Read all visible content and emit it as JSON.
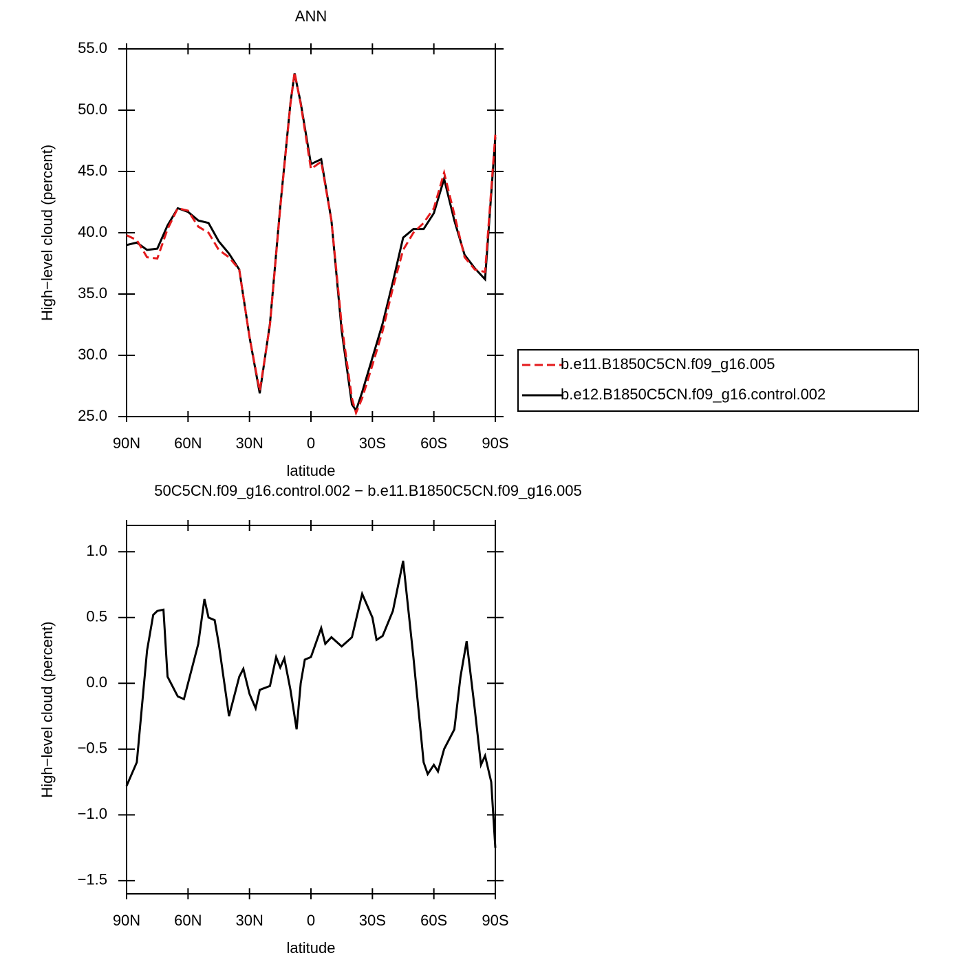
{
  "chart_data": [
    {
      "type": "line",
      "title": "ANN",
      "xlabel": "latitude",
      "ylabel": "High−level cloud (percent)",
      "x": [
        90,
        85,
        80,
        75,
        70,
        65,
        60,
        55,
        50,
        45,
        40,
        35,
        30,
        25,
        20,
        15,
        10,
        8,
        5,
        0,
        -5,
        -10,
        -15,
        -20,
        -22,
        -25,
        -30,
        -35,
        -40,
        -45,
        -50,
        -55,
        -60,
        -65,
        -70,
        -75,
        -80,
        -85,
        -90
      ],
      "xlim": [
        90,
        -90
      ],
      "xticks": [
        {
          "value": 90,
          "label": "90N"
        },
        {
          "value": 60,
          "label": "60N"
        },
        {
          "value": 30,
          "label": "30N"
        },
        0,
        {
          "value": -30,
          "label": "30S"
        },
        {
          "value": -60,
          "label": "60S"
        },
        {
          "value": -90,
          "label": "90S"
        }
      ],
      "ylim": [
        25,
        55
      ],
      "yticks": [
        {
          "value": 25,
          "label": "25.0"
        },
        {
          "value": 30,
          "label": "30.0"
        },
        {
          "value": 35,
          "label": "35.0"
        },
        {
          "value": 40,
          "label": "40.0"
        },
        {
          "value": 45,
          "label": "45.0"
        },
        {
          "value": 50,
          "label": "50.0"
        },
        {
          "value": 55,
          "label": "55.0"
        }
      ],
      "legend": "right",
      "series": [
        {
          "name": "b.e11.B1850C5CN.f09_g16.005",
          "color": "#e41a1c",
          "dash": true,
          "values": [
            39.8,
            39.4,
            38.0,
            37.9,
            40.3,
            42.0,
            41.8,
            40.5,
            40.0,
            38.6,
            38.0,
            37.0,
            31.5,
            27.1,
            32.5,
            42.0,
            50.5,
            53.1,
            50.5,
            45.2,
            45.8,
            41.0,
            32.5,
            26.5,
            25.3,
            26.5,
            29.2,
            32.0,
            35.5,
            38.6,
            40.0,
            40.8,
            42.0,
            44.9,
            41.5,
            38.0,
            37.0,
            36.8,
            48.0
          ]
        },
        {
          "name": "b.e12.B1850C5CN.f09_g16.control.002",
          "color": "#000000",
          "dash": false,
          "values": [
            39.0,
            39.2,
            38.6,
            38.7,
            40.6,
            42.0,
            41.7,
            41.0,
            40.8,
            39.3,
            38.3,
            37.0,
            31.5,
            26.9,
            32.6,
            42.1,
            50.6,
            53.0,
            50.6,
            45.6,
            46.0,
            41.0,
            32.0,
            26.0,
            25.5,
            27.0,
            29.8,
            32.6,
            36.0,
            39.6,
            40.3,
            40.3,
            41.6,
            44.4,
            41.0,
            38.2,
            37.1,
            36.2,
            47.8
          ]
        }
      ]
    },
    {
      "type": "line",
      "title": "50C5CN.f09_g16.control.002 − b.e11.B1850C5CN.f09_g16.005",
      "xlabel": "latitude",
      "ylabel": "High−level cloud (percent)",
      "x": [
        90,
        85,
        80,
        77,
        75,
        72,
        70,
        65,
        62,
        60,
        55,
        52,
        50,
        47,
        45,
        40,
        35,
        33,
        30,
        27,
        25,
        20,
        17,
        15,
        13,
        10,
        7,
        5,
        3,
        0,
        -5,
        -7,
        -10,
        -15,
        -20,
        -25,
        -30,
        -32,
        -35,
        -40,
        -45,
        -50,
        -55,
        -57,
        -60,
        -62,
        -65,
        -70,
        -73,
        -76,
        -80,
        -83,
        -85,
        -88,
        -90
      ],
      "xlim": [
        90,
        -90
      ],
      "xticks": [
        {
          "value": 90,
          "label": "90N"
        },
        {
          "value": 60,
          "label": "60N"
        },
        {
          "value": 30,
          "label": "30N"
        },
        0,
        {
          "value": -30,
          "label": "30S"
        },
        {
          "value": -60,
          "label": "60S"
        },
        {
          "value": -90,
          "label": "90S"
        }
      ],
      "ylim": [
        -1.6,
        1.2
      ],
      "yticks": [
        {
          "value": -1.5,
          "label": "−1.5"
        },
        {
          "value": -1,
          "label": "−1.0"
        },
        {
          "value": -0.5,
          "label": "−0.5"
        },
        {
          "value": 0,
          "label": "0.0"
        },
        0.5,
        {
          "value": 1,
          "label": "1.0"
        }
      ],
      "series": [
        {
          "color": "#000000",
          "dash": false,
          "values": [
            -0.78,
            -0.6,
            0.25,
            0.52,
            0.55,
            0.56,
            0.05,
            -0.1,
            -0.12,
            0.0,
            0.3,
            0.64,
            0.5,
            0.48,
            0.3,
            -0.25,
            0.05,
            0.11,
            -0.08,
            -0.19,
            -0.05,
            -0.02,
            0.2,
            0.12,
            0.19,
            -0.05,
            -0.35,
            0.0,
            0.18,
            0.2,
            0.42,
            0.3,
            0.35,
            0.28,
            0.35,
            0.68,
            0.5,
            0.33,
            0.36,
            0.55,
            0.93,
            0.2,
            -0.6,
            -0.69,
            -0.62,
            -0.67,
            -0.5,
            -0.35,
            0.05,
            0.32,
            -0.2,
            -0.62,
            -0.55,
            -0.75,
            -1.25
          ]
        }
      ]
    }
  ]
}
